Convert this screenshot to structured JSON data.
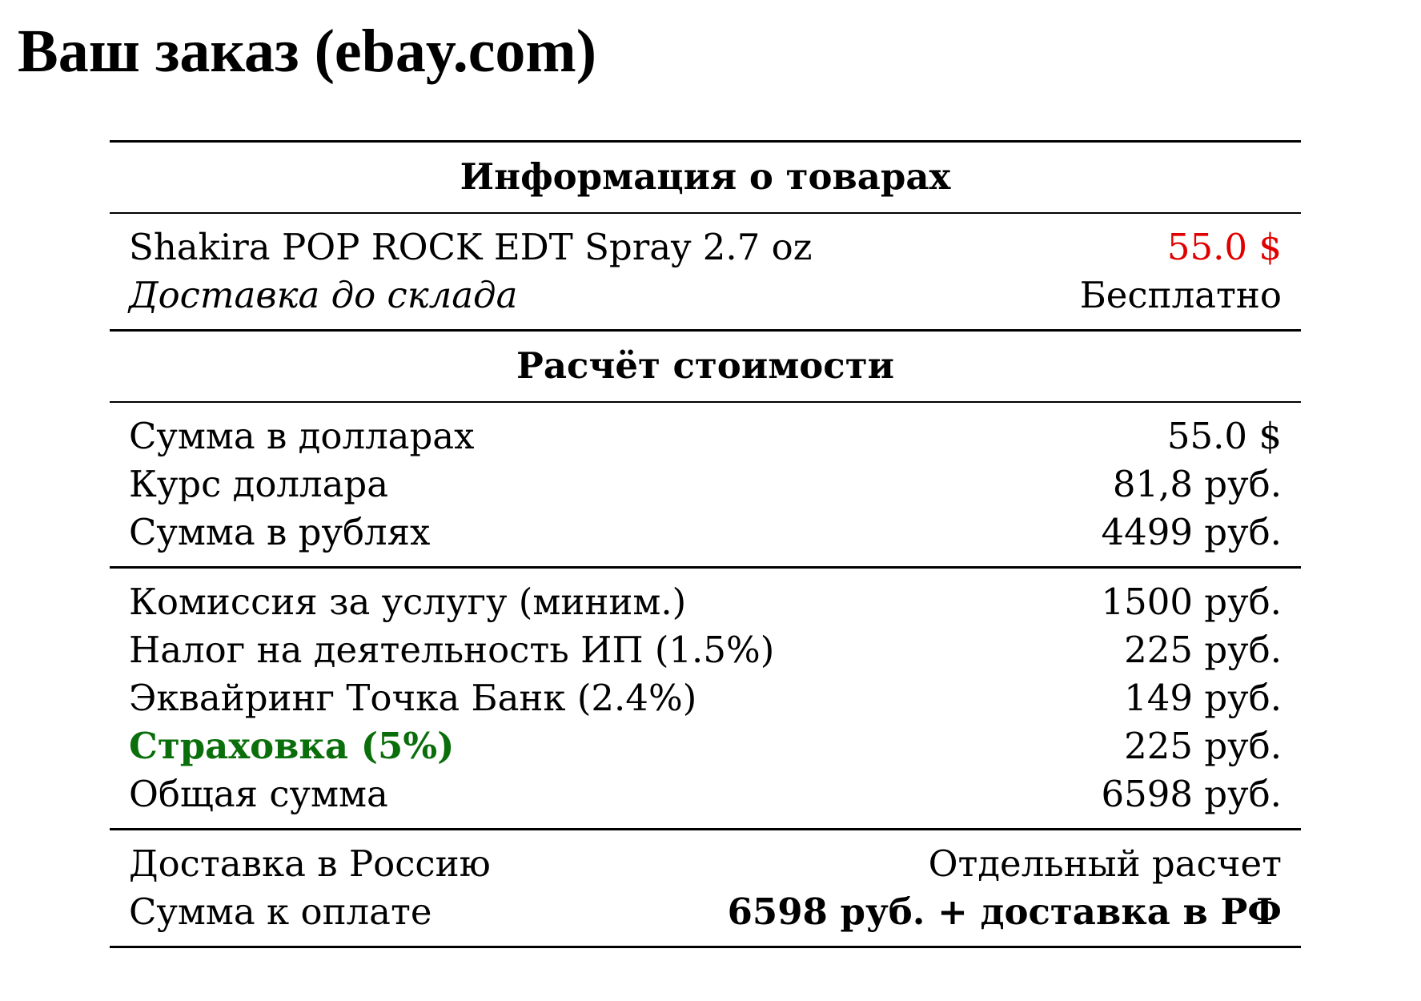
{
  "title": "Ваш заказ (ebay.com)",
  "colors": {
    "price_highlight": "#e00000",
    "insurance_highlight": "#0a6e0a",
    "text": "#000000"
  },
  "products_section": {
    "header": "Информация о товарах",
    "item": {
      "name": "Shakira POP ROCK EDT Spray 2.7 oz",
      "price": "55.0 $"
    },
    "warehouse_delivery": {
      "label": "Доставка до склада",
      "value": "Бесплатно"
    }
  },
  "cost_section": {
    "header": "Расчёт стоимости",
    "conversion": [
      {
        "label": "Сумма в долларах",
        "value": "55.0 $"
      },
      {
        "label": "Курс доллара",
        "value": "81,8 руб."
      },
      {
        "label": "Сумма в рублях",
        "value": "4499 руб."
      }
    ],
    "fees": [
      {
        "label": "Комиссия за услугу (миним.)",
        "value": "1500 руб."
      },
      {
        "label": "Налог на деятельность ИП (1.5%)",
        "value": "225 руб."
      },
      {
        "label": "Эквайринг Точка Банк (2.4%)",
        "value": "149 руб."
      },
      {
        "label": "Страховка (5%)",
        "value": "225 руб."
      },
      {
        "label": "Общая сумма",
        "value": "6598 руб."
      }
    ],
    "final": [
      {
        "label": "Доставка в Россию",
        "value": "Отдельный расчет"
      },
      {
        "label": "Сумма к оплате",
        "value": "6598 руб. + доставка в РФ"
      }
    ]
  }
}
